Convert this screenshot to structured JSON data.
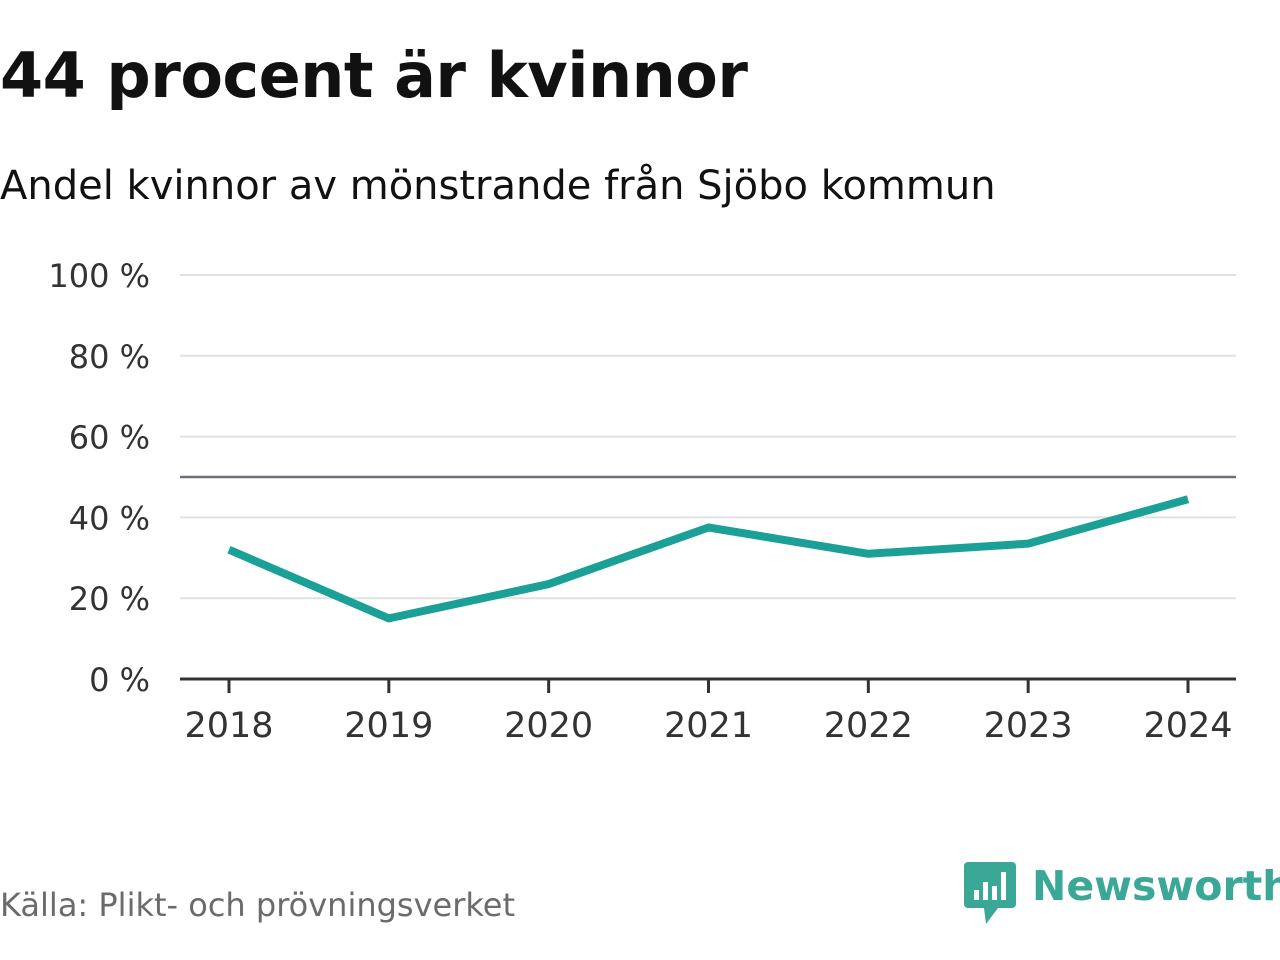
{
  "title": "44 procent är kvinnor",
  "subtitle": "Andel kvinnor av mönstrande från Sjöbo kommun",
  "source": "Källa: Plikt- och prövningsverket",
  "brand": {
    "name": "Newsworthy",
    "color": "#3aa797",
    "icon": "newsworthy-logo-icon"
  },
  "colors": {
    "line": "#1aa097",
    "grid": "#e1e1e1",
    "reference": "#6f6f78",
    "axis": "#333333",
    "text": "#333333"
  },
  "chart_data": {
    "type": "line",
    "title": "Andel kvinnor av mönstrande från Sjöbo kommun",
    "xlabel": "",
    "ylabel": "",
    "x": [
      "2018",
      "2019",
      "2020",
      "2021",
      "2022",
      "2023",
      "2024"
    ],
    "series": [
      {
        "values": [
          32,
          15,
          23.5,
          37.5,
          31,
          33.5,
          44.5
        ]
      }
    ],
    "ylim": [
      0,
      100
    ],
    "yticks": [
      0,
      20,
      40,
      60,
      80,
      100
    ],
    "ytick_labels": [
      "0 %",
      "20 %",
      "40 %",
      "60 %",
      "80 %",
      "100 %"
    ],
    "reference_line": 50,
    "grid": true,
    "legend": "none"
  }
}
